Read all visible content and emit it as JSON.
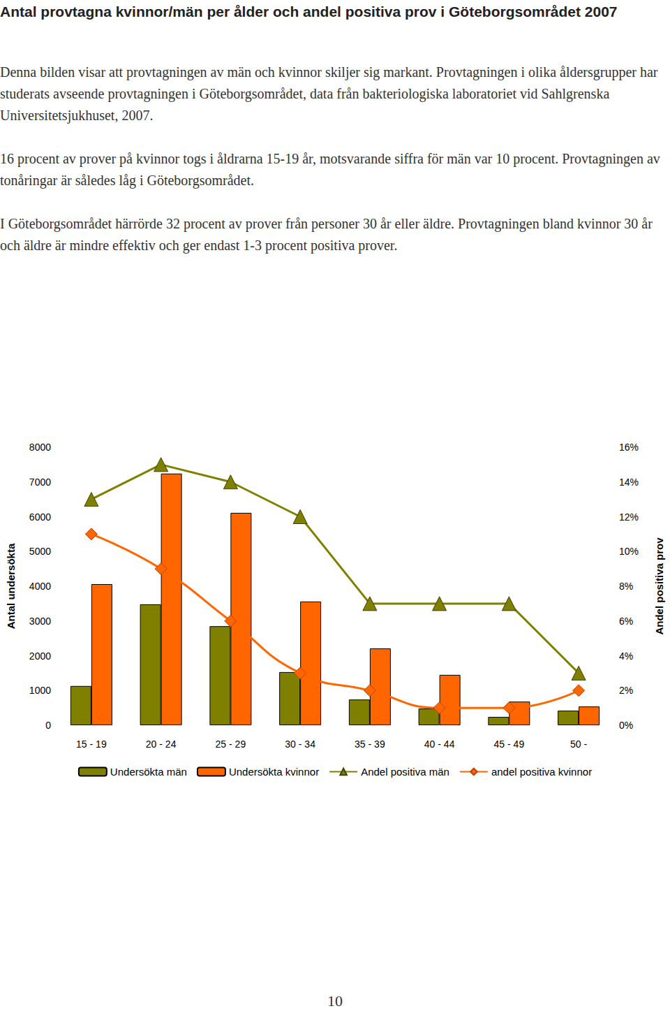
{
  "document": {
    "title": "Antal provtagna kvinnor/män per ålder och andel positiva prov i Göteborgsområdet 2007",
    "paragraphs": [
      "Denna bilden visar att provtagningen av män och kvinnor skiljer sig markant. Provtagningen i olika åldersgrupper har studerats avseende provtagningen i Göteborgsområdet, data från bakteriologiska laboratoriet vid Sahlgrenska Universitetsjukhuset, 2007.",
      "16 procent av prover på kvinnor togs i åldrarna 15-19 år, motsvarande siffra för män var 10 procent. Provtagningen av tonåringar är således låg i Göteborgsområdet.",
      "I Göteborgsområdet härrörde 32 procent av prover från personer 30 år eller äldre. Provtagningen bland kvinnor 30 år och äldre är mindre effektiv och ger endast 1-3 procent positiva prover."
    ],
    "page_number": "10"
  },
  "chart_data": {
    "type": "bar",
    "categories": [
      "15 - 19",
      "20 - 24",
      "25 - 29",
      "30 - 34",
      "35 - 39",
      "40 - 44",
      "45 - 49",
      "50 -"
    ],
    "ylabel": "Antal undersökta",
    "y2label": "Andel positiva prov",
    "ylim": [
      0,
      8000
    ],
    "yticks": [
      0,
      1000,
      2000,
      3000,
      4000,
      5000,
      6000,
      7000,
      8000
    ],
    "y2lim": [
      0,
      16
    ],
    "y2ticks": [
      {
        "value": 0,
        "label": "0%"
      },
      {
        "value": 2,
        "label": "2%"
      },
      {
        "value": 4,
        "label": "4%"
      },
      {
        "value": 6,
        "label": "6%"
      },
      {
        "value": 8,
        "label": "8%"
      },
      {
        "value": 10,
        "label": "10%"
      },
      {
        "value": 12,
        "label": "12%"
      },
      {
        "value": 14,
        "label": "14%"
      },
      {
        "value": 16,
        "label": "16%"
      }
    ],
    "grid": false,
    "legend": "bottom",
    "series": [
      {
        "name": "Undersökta män",
        "type": "bar",
        "color": "#808000",
        "values": [
          1130,
          3480,
          2850,
          1530,
          740,
          480,
          240,
          420
        ]
      },
      {
        "name": "Undersökta kvinnor",
        "type": "bar",
        "color": "#ff6600",
        "values": [
          4060,
          7240,
          6110,
          3560,
          2210,
          1450,
          680,
          540
        ]
      },
      {
        "name": "Andel positiva män",
        "type": "line",
        "axis": "y2",
        "color": "#808000",
        "marker": "triangle",
        "line_style": "solid",
        "values": [
          13,
          15,
          14,
          12,
          7,
          7,
          7,
          3
        ]
      },
      {
        "name": "andel positiva kvinnor",
        "type": "line",
        "axis": "y2",
        "color": "#ff6600",
        "marker": "diamond",
        "line_style": "smooth",
        "values": [
          11,
          9,
          6,
          3,
          2,
          1,
          1,
          2
        ]
      }
    ]
  }
}
